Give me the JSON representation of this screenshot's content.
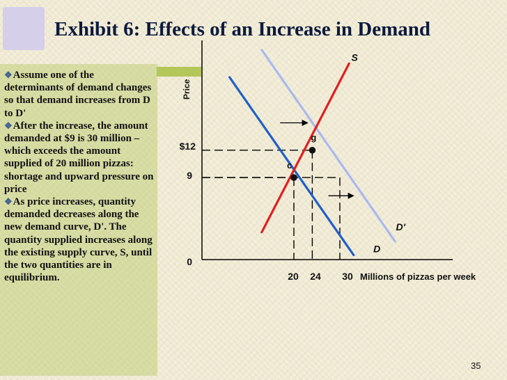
{
  "slide": {
    "title": "Exhibit 6:  Effects of an Increase in Demand",
    "page_number": "35",
    "bullets": [
      "Assume one of the determinants of demand changes so that demand increases from D to D'",
      "After the increase, the amount demanded at $9 is 30 million – which exceeds the amount supplied of 20 million pizzas: shortage and upward pressure on price",
      "As price increases, quantity demanded decreases along the new demand curve, D'. The quantity supplied increases along the existing supply curve, S, until the two quantities are in equilibrium."
    ],
    "bullet_glyph": "❖"
  },
  "chart_data": {
    "type": "line",
    "xlabel": "Millions of pizzas per week",
    "ylabel": "Price",
    "origin_label": "0",
    "x_ticks": [
      "20",
      "24",
      "30"
    ],
    "y_ticks": [
      "$12",
      "9"
    ],
    "series": [
      {
        "name": "S",
        "color": "#e01f1f",
        "points": [
          [
            13,
            3
          ],
          [
            32,
            21.5
          ]
        ]
      },
      {
        "name": "D",
        "color": "#1f5fc9",
        "points": [
          [
            6,
            20
          ],
          [
            33,
            0.5
          ]
        ]
      },
      {
        "name": "D'",
        "color": "#a9b9ef",
        "points": [
          [
            13,
            23
          ],
          [
            42,
            2
          ]
        ]
      }
    ],
    "points": [
      {
        "label": "c",
        "x": 20,
        "y": 9
      },
      {
        "label": "g",
        "x": 24,
        "y": 12
      }
    ],
    "guides": [
      {
        "y": 12,
        "x": 24
      },
      {
        "y": 9,
        "x": 20
      },
      {
        "y": 9,
        "x": 30
      }
    ],
    "arrows": [
      {
        "from": [
          17,
          15
        ],
        "to": [
          23,
          15
        ]
      },
      {
        "from": [
          27.5,
          7
        ],
        "to": [
          33,
          7
        ]
      }
    ],
    "colors": {
      "supply": "#e01f1f",
      "demand": "#1f5fc9",
      "new_demand": "#a9b9ef"
    }
  }
}
